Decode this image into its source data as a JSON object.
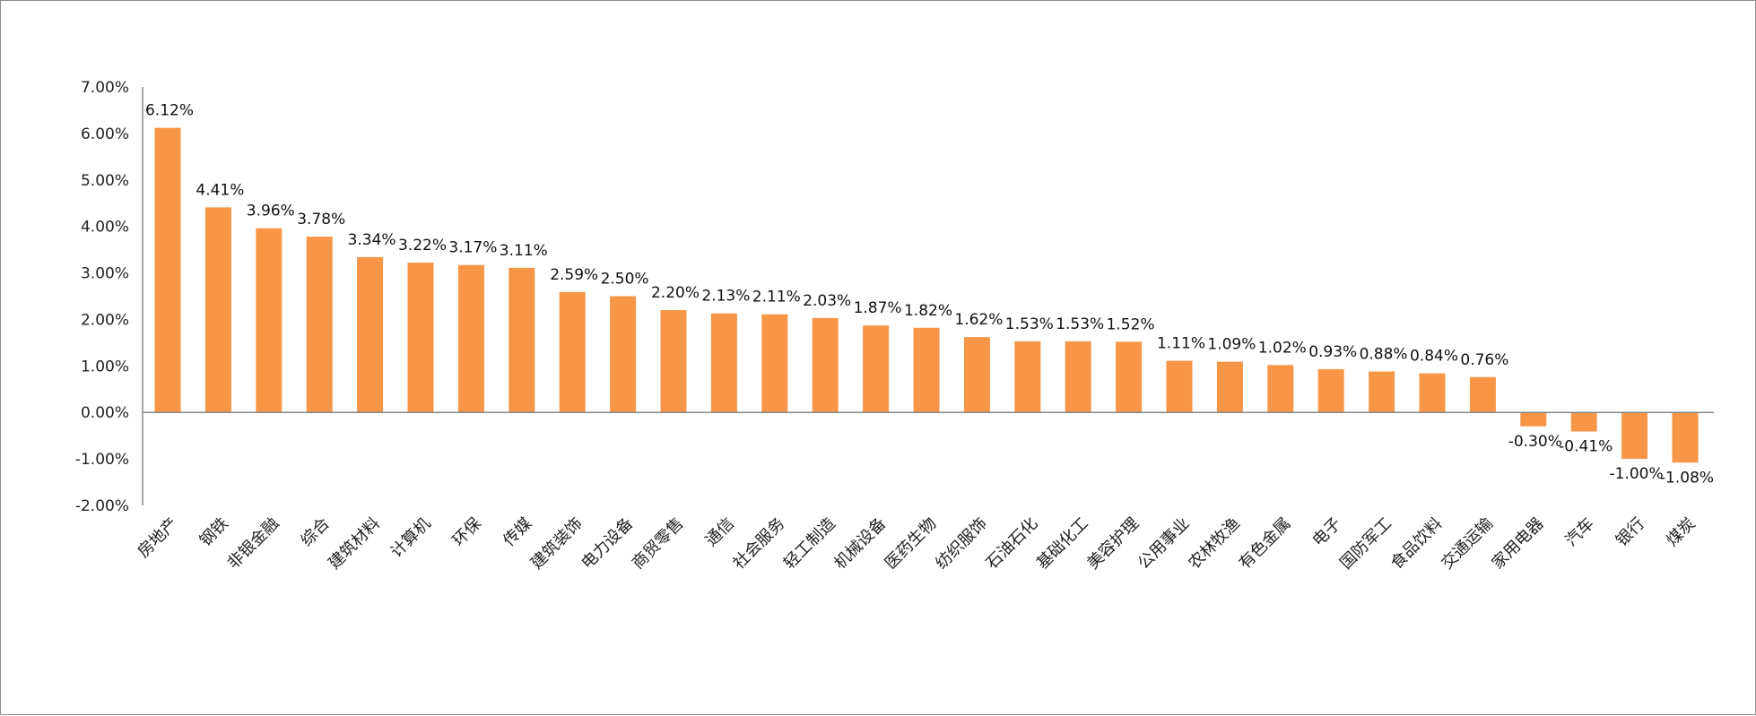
{
  "chart_data": {
    "type": "bar",
    "title": "",
    "xlabel": "",
    "ylabel": "",
    "ylim": [
      -0.02,
      0.07
    ],
    "yticks": [
      "7.00%",
      "6.00%",
      "5.00%",
      "4.00%",
      "3.00%",
      "2.00%",
      "1.00%",
      "0.00%",
      "-1.00%",
      "-2.00%"
    ],
    "grid": false,
    "legend": "none",
    "bar_color": "#F79646",
    "categories": [
      "房地产",
      "钢铁",
      "非银金融",
      "综合",
      "建筑材料",
      "计算机",
      "环保",
      "传媒",
      "建筑装饰",
      "电力设备",
      "商贸零售",
      "通信",
      "社会服务",
      "轻工制造",
      "机械设备",
      "医药生物",
      "纺织服饰",
      "石油石化",
      "基础化工",
      "美容护理",
      "公用事业",
      "农林牧渔",
      "有色金属",
      "电子",
      "国防军工",
      "食品饮料",
      "交通运输",
      "家用电器",
      "汽车",
      "银行",
      "煤炭"
    ],
    "values": [
      0.0612,
      0.0441,
      0.0396,
      0.0378,
      0.0334,
      0.0322,
      0.0317,
      0.0311,
      0.0259,
      0.025,
      0.022,
      0.0213,
      0.0211,
      0.0203,
      0.0187,
      0.0182,
      0.0162,
      0.0153,
      0.0153,
      0.0152,
      0.0111,
      0.0109,
      0.0102,
      0.0093,
      0.0088,
      0.0084,
      0.0076,
      -0.003,
      -0.0041,
      -0.01,
      -0.0108
    ],
    "data_labels": [
      "6.12%",
      "4.41%",
      "3.96%",
      "3.78%",
      "3.34%",
      "3.22%",
      "3.17%",
      "3.11%",
      "2.59%",
      "2.50%",
      "2.20%",
      "2.13%",
      "2.11%",
      "2.03%",
      "1.87%",
      "1.82%",
      "1.62%",
      "1.53%",
      "1.53%",
      "1.52%",
      "1.11%",
      "1.09%",
      "1.02%",
      "0.93%",
      "0.88%",
      "0.84%",
      "0.76%",
      "-0.30%",
      "-0.41%",
      "-1.00%",
      "-1.08%"
    ]
  }
}
